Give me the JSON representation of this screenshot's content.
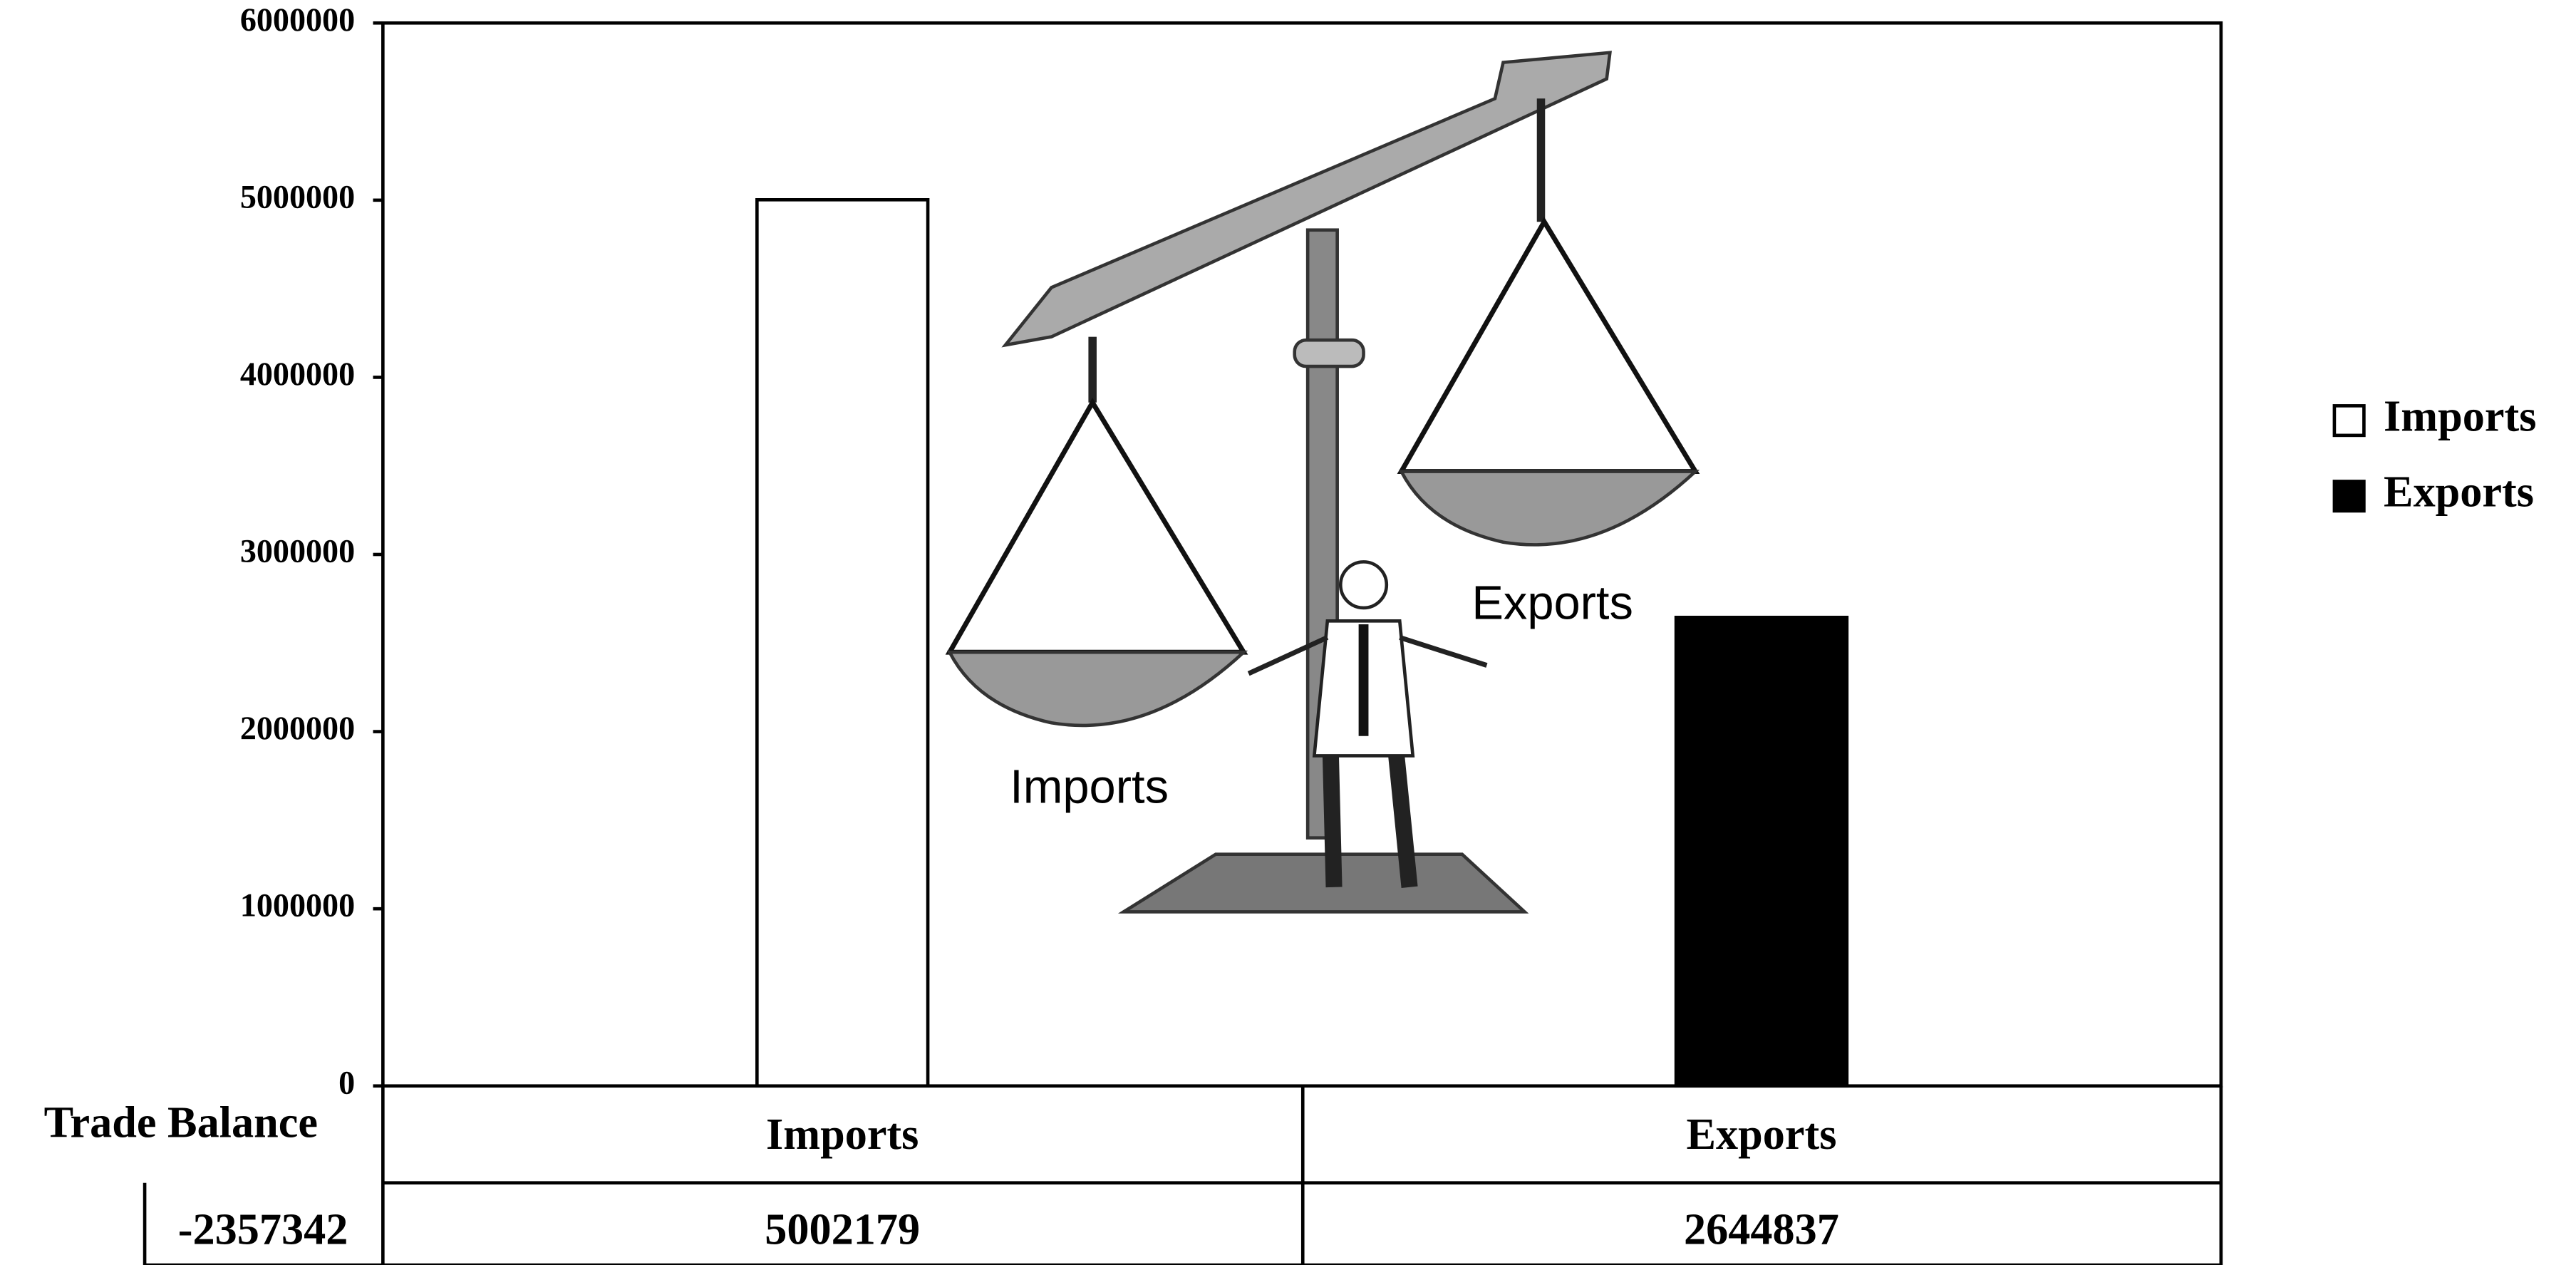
{
  "chart_data": {
    "type": "bar",
    "categories": [
      "Imports",
      "Exports"
    ],
    "series": [
      {
        "name": "Imports",
        "color": "#ffffff",
        "values": [
          5002179,
          null
        ]
      },
      {
        "name": "Exports",
        "color": "#000000",
        "values": [
          null,
          2644837
        ]
      }
    ],
    "ylim": [
      0,
      6000000
    ],
    "yticks": [
      0,
      1000000,
      2000000,
      3000000,
      4000000,
      5000000,
      6000000
    ],
    "grid": false,
    "legend": "right",
    "data_table": {
      "label": "Trade Balance",
      "value": -2357342
    },
    "annotations": [
      "Imports",
      "Exports"
    ]
  }
}
